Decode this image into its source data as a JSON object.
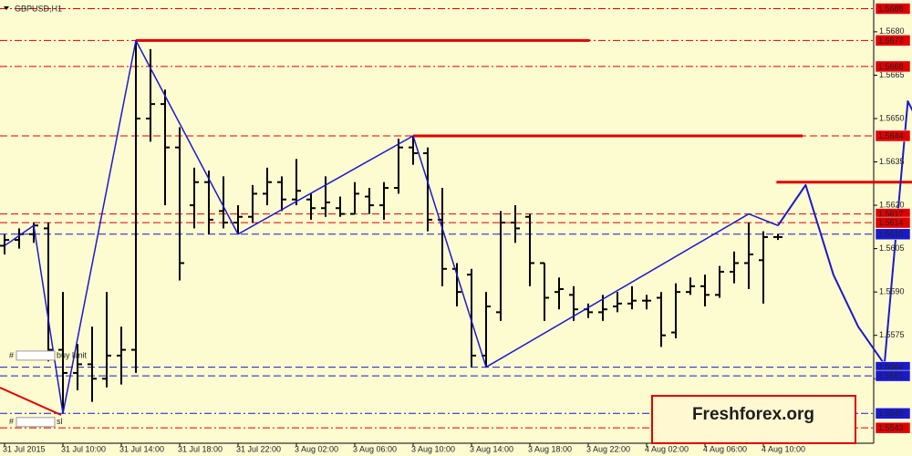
{
  "chart_data": {
    "type": "ohlc",
    "title": "GBPUSD,H1",
    "categories": [
      "31 Jul 2015",
      null,
      null,
      null,
      "31 Jul 10:00",
      null,
      null,
      null,
      "31 Jul 14:00",
      null,
      null,
      null,
      "31 Jul 18:00",
      null,
      null,
      null,
      "31 Jul 22:00",
      null,
      null,
      null,
      "3 Aug 02:00",
      null,
      null,
      null,
      "3 Aug 06:00",
      null,
      null,
      null,
      "3 Aug 10:00",
      null,
      null,
      null,
      "3 Aug 14:00",
      null,
      null,
      null,
      "3 Aug 18:00",
      null,
      null,
      null,
      "3 Aug 22:00",
      null,
      null,
      null,
      "4 Aug 02:00",
      null,
      null,
      null,
      "4 Aug 06:00",
      null,
      null,
      null,
      "4 Aug 10:00",
      null
    ],
    "open": [
      1.5606,
      1.5608,
      1.561,
      1.5612,
      1.557,
      1.5562,
      1.5565,
      1.556,
      1.5568,
      1.557,
      1.565,
      1.5655,
      1.564,
      1.562,
      1.5628,
      1.5618,
      1.5614,
      1.5616,
      1.5624,
      1.5628,
      1.5622,
      1.5622,
      1.5619,
      1.5619,
      1.5617,
      1.5623,
      1.562,
      1.5626,
      1.564,
      1.5638,
      1.5615,
      1.5598,
      1.5596,
      1.5568,
      1.5583,
      1.5614,
      1.5616,
      1.56,
      1.559,
      1.5589,
      1.5584,
      1.5583,
      1.5585,
      1.5586,
      1.5587,
      1.5588,
      1.5576,
      1.559,
      1.5592,
      1.5589,
      1.5597,
      1.56,
      1.5601,
      1.5609
    ],
    "high": [
      1.561,
      1.5612,
      1.5614,
      1.5614,
      1.559,
      1.5572,
      1.5578,
      1.559,
      1.5578,
      1.5677,
      1.5674,
      1.566,
      1.5647,
      1.5633,
      1.5632,
      1.563,
      1.562,
      1.5627,
      1.5633,
      1.563,
      1.5636,
      1.5624,
      1.563,
      1.5623,
      1.5628,
      1.5626,
      1.5628,
      1.5643,
      1.5644,
      1.564,
      1.5626,
      1.56,
      1.5598,
      1.559,
      1.5618,
      1.562,
      1.5617,
      1.56,
      1.5595,
      1.5592,
      1.5586,
      1.5589,
      1.559,
      1.5592,
      1.5589,
      1.559,
      1.5593,
      1.5595,
      1.5596,
      1.5599,
      1.5604,
      1.5614,
      1.5611,
      1.561
    ],
    "low": [
      1.5603,
      1.5605,
      1.5607,
      1.5566,
      1.5548,
      1.5556,
      1.5552,
      1.5557,
      1.5558,
      1.5562,
      1.5642,
      1.562,
      1.5594,
      1.5612,
      1.561,
      1.5612,
      1.561,
      1.5614,
      1.562,
      1.5618,
      1.562,
      1.5615,
      1.5616,
      1.5616,
      1.5617,
      1.5617,
      1.5615,
      1.5624,
      1.5634,
      1.5611,
      1.5592,
      1.5585,
      1.5564,
      1.5564,
      1.558,
      1.5607,
      1.5592,
      1.558,
      1.5584,
      1.558,
      1.5581,
      1.558,
      1.5583,
      1.5584,
      1.5584,
      1.5571,
      1.5574,
      1.5589,
      1.5585,
      1.5588,
      1.5593,
      1.5591,
      1.5586,
      1.5608
    ],
    "close": [
      1.5608,
      1.561,
      1.5613,
      1.557,
      1.5562,
      1.5565,
      1.556,
      1.5568,
      1.557,
      1.565,
      1.5655,
      1.564,
      1.56,
      1.5628,
      1.5615,
      1.5614,
      1.5616,
      1.5624,
      1.5628,
      1.5622,
      1.5625,
      1.5619,
      1.5621,
      1.5617,
      1.5624,
      1.562,
      1.5626,
      1.564,
      1.5638,
      1.5615,
      1.5598,
      1.559,
      1.5568,
      1.5585,
      1.5614,
      1.5612,
      1.56,
      1.5588,
      1.5591,
      1.5584,
      1.5583,
      1.5584,
      1.5586,
      1.5587,
      1.5587,
      1.5575,
      1.559,
      1.5592,
      1.5589,
      1.5597,
      1.56,
      1.5603,
      1.5609,
      1.5609
    ],
    "bar_color": "#000000",
    "zigzag": {
      "color": "#1a1acc",
      "x": [
        0,
        2,
        4,
        9,
        16,
        28,
        33,
        51,
        53
      ],
      "values": [
        1.5606,
        1.5613,
        1.5548,
        1.5677,
        1.561,
        1.5644,
        1.5564,
        1.5617,
        1.5613
      ]
    },
    "forecast": {
      "color": "#1a1acc",
      "x": [
        53,
        54.9,
        56.8,
        58.5,
        60.3,
        61.9,
        62.5
      ],
      "values": [
        1.5613,
        1.5627,
        1.5596,
        1.5578,
        1.5565,
        1.5656,
        1.565
      ]
    },
    "segments": [
      {
        "value": 1.5677,
        "x": [
          9,
          40.1
        ]
      },
      {
        "value": 1.5644,
        "x": [
          28,
          54.7
        ]
      },
      {
        "value": 1.5628,
        "x": [
          52.9,
          62.5
        ]
      }
    ],
    "segment_color": "#e00000",
    "ylim": [
      1.5538,
      1.5691
    ],
    "yticks": [
      {
        "value": 1.568,
        "label": "1.5680"
      },
      1.5665,
      {
        "value": 1.565,
        "label": "1.5650"
      },
      1.5635,
      {
        "value": 1.562,
        "label": "1.5620"
      },
      1.5605,
      {
        "value": 1.559,
        "label": "1.5590"
      },
      1.5575,
      {
        "value": 1.556,
        "label": "1.5560"
      }
    ],
    "levels": [
      {
        "value": 1.5688,
        "label": "1.5688",
        "color": "#e00000",
        "dash": "dashdot"
      },
      {
        "value": 1.5677,
        "label": "1.5677",
        "color": "#e00000",
        "dash": "dashdot"
      },
      {
        "value": 1.5668,
        "label": "1.5668",
        "color": "#e00000",
        "dash": "dashdot"
      },
      {
        "value": 1.5644,
        "label": "1.5644",
        "color": "#e00000",
        "dash": "dash"
      },
      {
        "value": 1.5617,
        "label": "1.5617",
        "color": "#e00000",
        "dash": "dash"
      },
      {
        "value": 1.5614,
        "label": "1.5614",
        "color": "#e00000",
        "dash": "dash"
      },
      {
        "value": 1.561,
        "label": "1.5610",
        "color": "#1a1acc",
        "dash": "dash"
      },
      {
        "value": 1.5564,
        "label": "1.5564",
        "color": "#1a1acc",
        "dash": "dash"
      },
      {
        "value": 1.5561,
        "label": "1.5561",
        "color": "#1a1acc",
        "dash": "dash"
      },
      {
        "value": 1.5548,
        "label": "1.5548",
        "color": "#1a1acc",
        "dash": "dashdot"
      },
      {
        "value": 1.5543,
        "label": "1.5543",
        "color": "#e00000",
        "dash": "dashdot"
      }
    ],
    "orders": [
      {
        "mark": "#",
        "text": "buy limit",
        "value": 1.5568
      },
      {
        "mark": "#",
        "text": "sl",
        "value": 1.5545
      }
    ],
    "watermark": "Freshforex.org"
  }
}
